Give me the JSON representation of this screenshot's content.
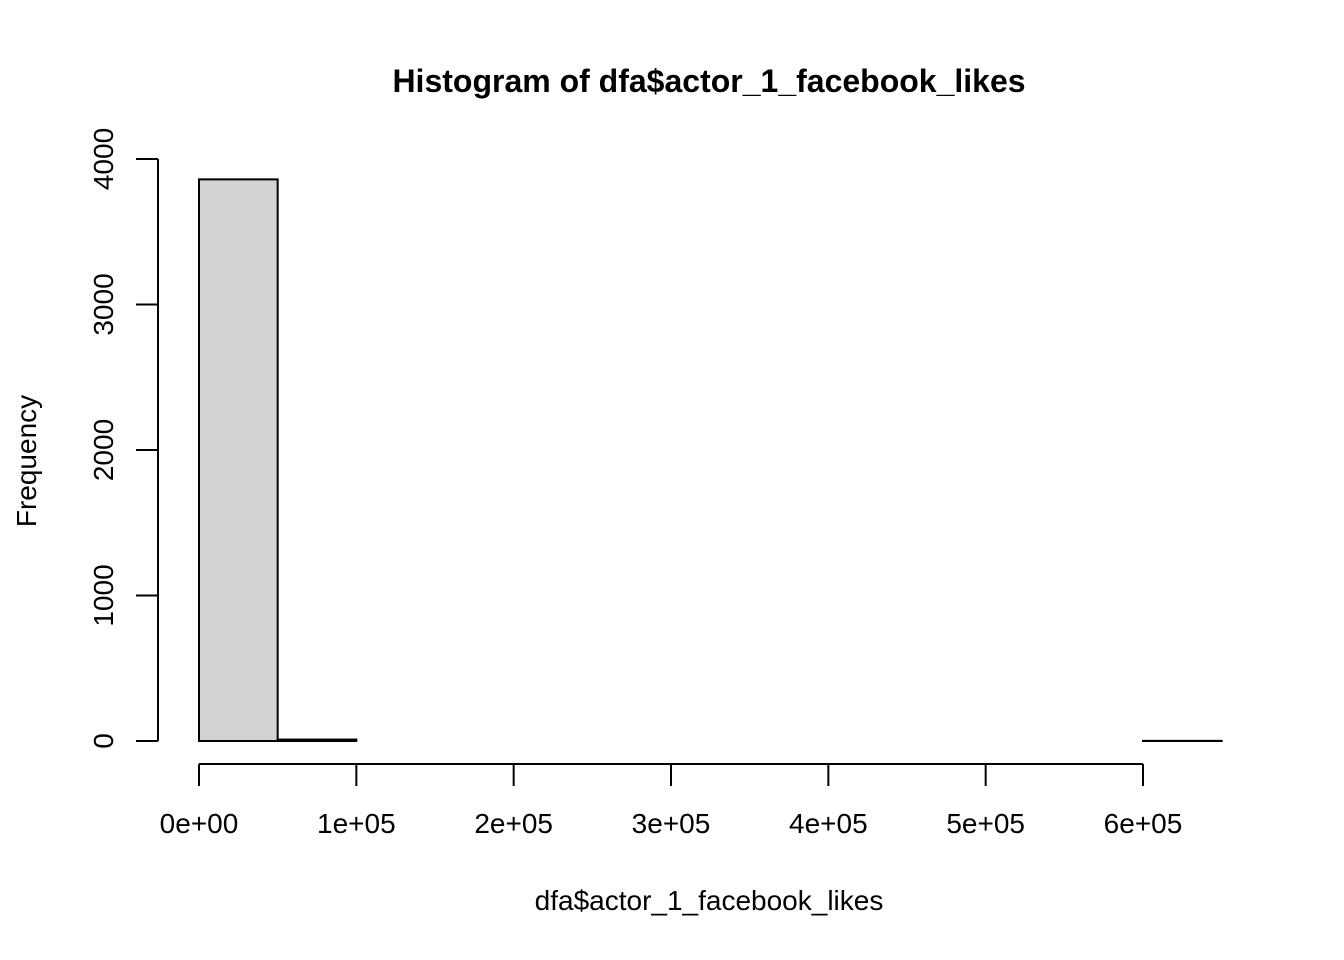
{
  "chart_data": {
    "type": "bar",
    "subtype": "histogram",
    "title": "Histogram of dfa$actor_1_facebook_likes",
    "xlabel": "dfa$actor_1_facebook_likes",
    "ylabel": "Frequency",
    "bin_edges": [
      0,
      50000,
      100000,
      150000,
      200000,
      250000,
      300000,
      350000,
      400000,
      450000,
      500000,
      550000,
      600000,
      650000
    ],
    "values": [
      3860,
      10,
      0,
      0,
      0,
      0,
      0,
      0,
      0,
      0,
      0,
      0,
      1
    ],
    "x_ticks": [
      0,
      100000,
      200000,
      300000,
      400000,
      500000,
      600000
    ],
    "x_tick_labels": [
      "0e+00",
      "1e+05",
      "2e+05",
      "3e+05",
      "4e+05",
      "5e+05",
      "6e+05"
    ],
    "y_ticks": [
      0,
      1000,
      2000,
      3000,
      4000
    ],
    "y_tick_labels": [
      "0",
      "1000",
      "2000",
      "3000",
      "4000"
    ],
    "xlim": [
      0,
      650000
    ],
    "ylim": [
      0,
      4000
    ],
    "bar_fill": "#d3d3d3",
    "bar_stroke": "#000000",
    "grid": false
  }
}
